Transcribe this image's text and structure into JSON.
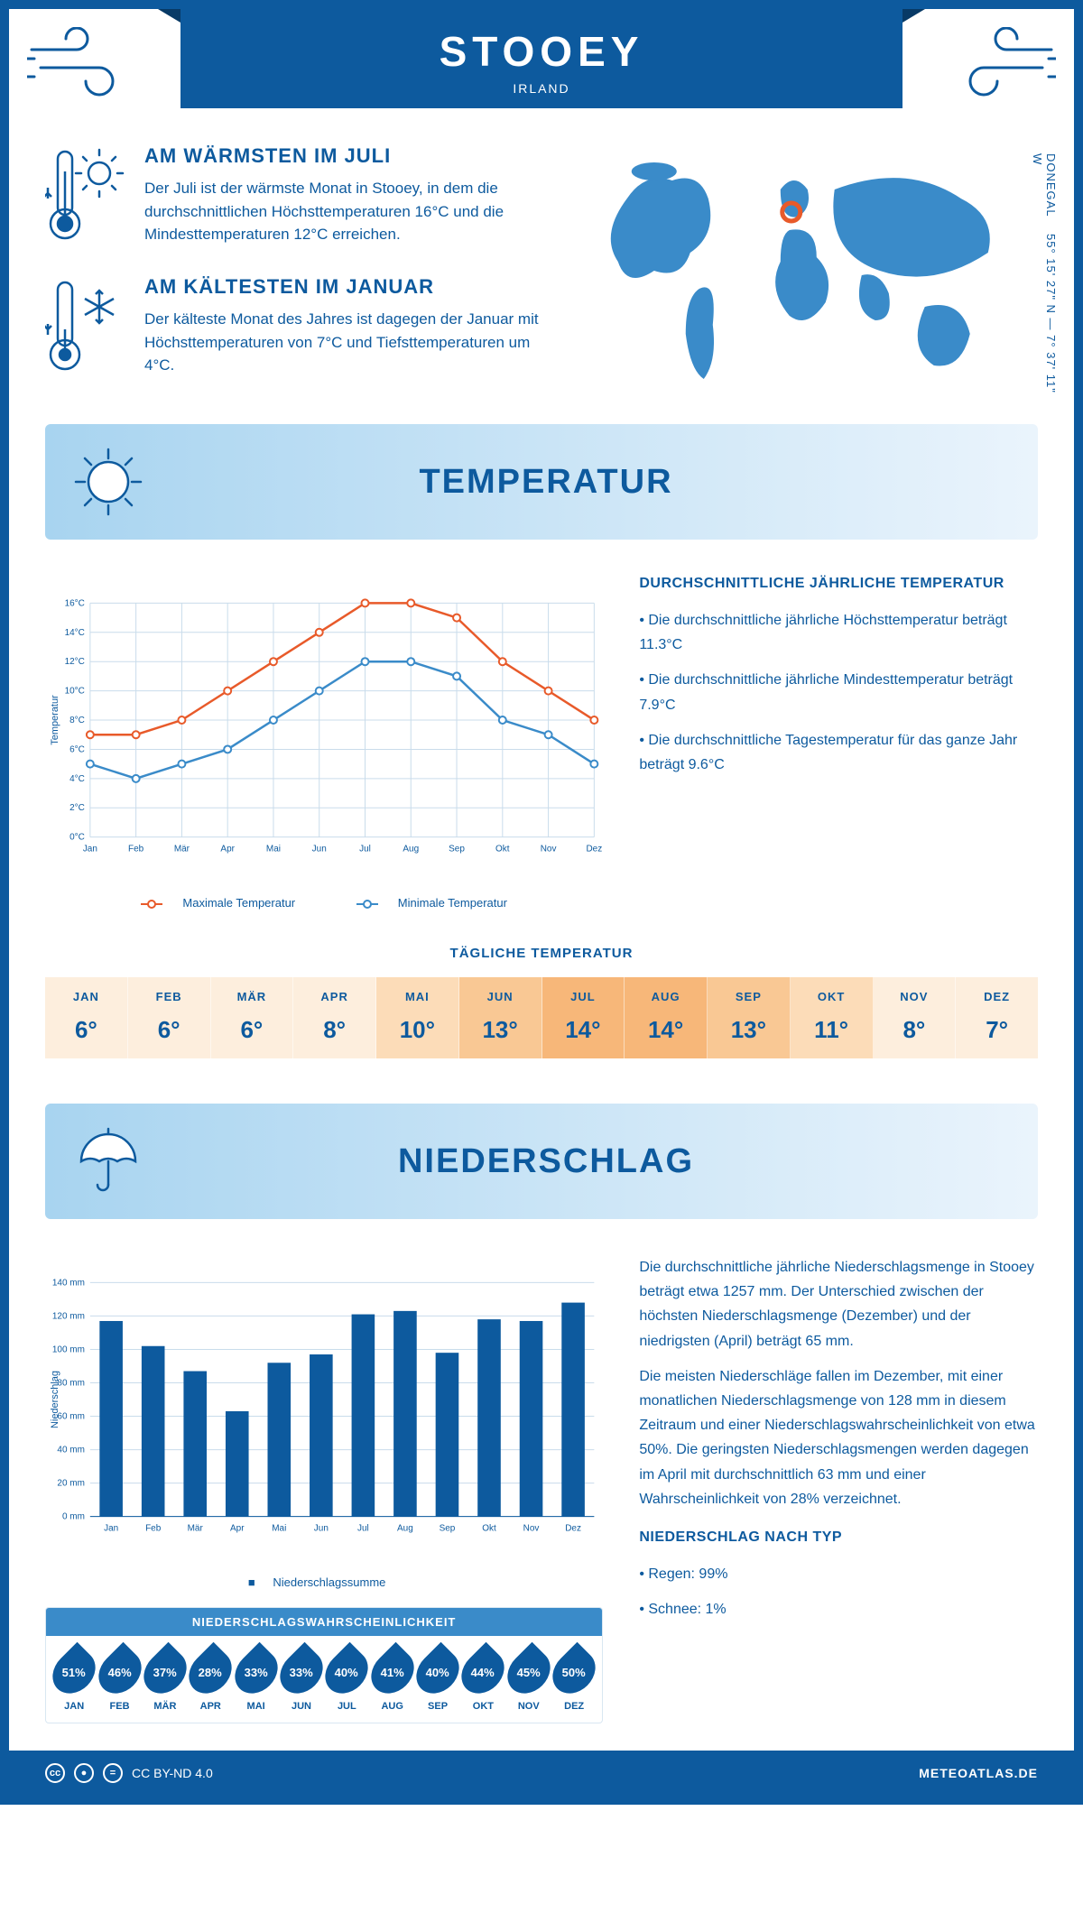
{
  "header": {
    "title": "STOOEY",
    "country": "IRLAND"
  },
  "coords": {
    "lat": "55° 15' 27\" N",
    "lon": "7° 37' 11\" W",
    "region": "DONEGAL"
  },
  "wind_icon_color": "#0d5a9e",
  "brand_color": "#0d5a9e",
  "warm": {
    "title": "AM WÄRMSTEN IM JULI",
    "text": "Der Juli ist der wärmste Monat in Stooey, in dem die durchschnittlichen Höchsttemperaturen 16°C und die Mindesttemperaturen 12°C erreichen."
  },
  "cold": {
    "title": "AM KÄLTESTEN IM JANUAR",
    "text": "Der kälteste Monat des Jahres ist dagegen der Januar mit Höchsttemperaturen von 7°C und Tiefsttemperaturen um 4°C."
  },
  "temp_section": {
    "heading": "TEMPERATUR",
    "chart": {
      "type": "line",
      "months": [
        "Jan",
        "Feb",
        "Mär",
        "Apr",
        "Mai",
        "Jun",
        "Jul",
        "Aug",
        "Sep",
        "Okt",
        "Nov",
        "Dez"
      ],
      "max_series": [
        7,
        7,
        8,
        10,
        12,
        14,
        16,
        16,
        15,
        12,
        10,
        8
      ],
      "min_series": [
        5,
        4,
        5,
        6,
        8,
        10,
        12,
        12,
        11,
        8,
        7,
        5
      ],
      "max_color": "#e85a2a",
      "min_color": "#3a8bc9",
      "ylim": [
        0,
        16
      ],
      "ytick_step": 2,
      "ylabel": "Temperatur",
      "grid_color": "#c9dceb",
      "max_label": "Maximale Temperatur",
      "min_label": "Minimale Temperatur"
    },
    "side": {
      "title": "DURCHSCHNITTLICHE JÄHRLICHE TEMPERATUR",
      "bullets": [
        "Die durchschnittliche jährliche Höchsttemperatur beträgt 11.3°C",
        "Die durchschnittliche jährliche Mindesttemperatur beträgt 7.9°C",
        "Die durchschnittliche Tagestemperatur für das ganze Jahr beträgt 9.6°C"
      ]
    },
    "daily": {
      "title": "TÄGLICHE TEMPERATUR",
      "months": [
        "JAN",
        "FEB",
        "MÄR",
        "APR",
        "MAI",
        "JUN",
        "JUL",
        "AUG",
        "SEP",
        "OKT",
        "NOV",
        "DEZ"
      ],
      "values": [
        "6°",
        "6°",
        "6°",
        "8°",
        "10°",
        "13°",
        "14°",
        "14°",
        "13°",
        "11°",
        "8°",
        "7°"
      ],
      "cell_colors": [
        "#fdeedd",
        "#fdeedd",
        "#fdeedd",
        "#fdeedd",
        "#fcdcb8",
        "#f9c894",
        "#f7b779",
        "#f7b779",
        "#f9c894",
        "#fcdcb8",
        "#fdeedd",
        "#fdeedd"
      ]
    }
  },
  "precip_section": {
    "heading": "NIEDERSCHLAG",
    "chart": {
      "type": "bar",
      "months": [
        "Jan",
        "Feb",
        "Mär",
        "Apr",
        "Mai",
        "Jun",
        "Jul",
        "Aug",
        "Sep",
        "Okt",
        "Nov",
        "Dez"
      ],
      "values": [
        117,
        102,
        87,
        63,
        92,
        97,
        121,
        123,
        98,
        118,
        117,
        128
      ],
      "bar_color": "#0d5a9e",
      "ylim": [
        0,
        140
      ],
      "ytick_step": 20,
      "ylabel": "Niederschlag",
      "legend_label": "Niederschlagssumme",
      "grid_color": "#c9dceb"
    },
    "text": "Die durchschnittliche jährliche Niederschlagsmenge in Stooey beträgt etwa 1257 mm. Der Unterschied zwischen der höchsten Niederschlagsmenge (Dezember) und der niedrigsten (April) beträgt 65 mm.",
    "text2": "Die meisten Niederschläge fallen im Dezember, mit einer monatlichen Niederschlagsmenge von 128 mm in diesem Zeitraum und einer Niederschlagswahrscheinlichkeit von etwa 50%. Die geringsten Niederschlagsmengen werden dagegen im April mit durchschnittlich 63 mm und einer Wahrscheinlichkeit von 28% verzeichnet.",
    "type_title": "NIEDERSCHLAG NACH TYP",
    "type_bullets": [
      "Regen: 99%",
      "Schnee: 1%"
    ],
    "prob": {
      "title": "NIEDERSCHLAGSWAHRSCHEINLICHKEIT",
      "months": [
        "JAN",
        "FEB",
        "MÄR",
        "APR",
        "MAI",
        "JUN",
        "JUL",
        "AUG",
        "SEP",
        "OKT",
        "NOV",
        "DEZ"
      ],
      "values": [
        "51%",
        "46%",
        "37%",
        "28%",
        "33%",
        "33%",
        "40%",
        "41%",
        "40%",
        "44%",
        "45%",
        "50%"
      ]
    }
  },
  "footer": {
    "license": "CC BY-ND 4.0",
    "site": "METEOATLAS.DE"
  }
}
